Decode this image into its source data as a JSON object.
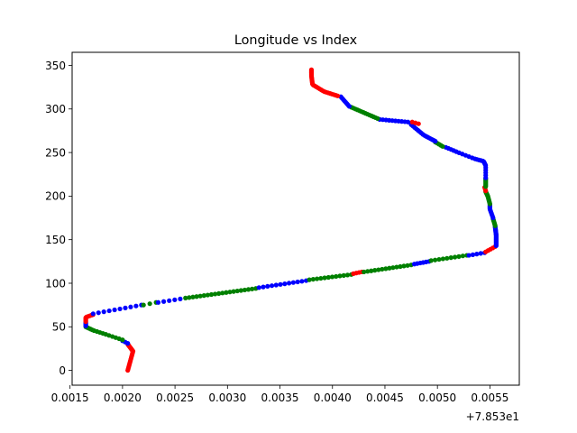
{
  "chart_data": {
    "type": "scatter",
    "title": "Longitude vs Index",
    "xlabel": "",
    "ylabel": "",
    "x_offset_label": "+7.853e1",
    "xlim": [
      0.00152,
      0.00578
    ],
    "ylim": [
      -17,
      365
    ],
    "xticks": [
      0.0015,
      0.002,
      0.0025,
      0.003,
      0.0035,
      0.004,
      0.0045,
      0.005,
      0.0055
    ],
    "xtick_labels": [
      "0.0015",
      "0.0020",
      "0.0025",
      "0.0030",
      "0.0035",
      "0.0040",
      "0.0045",
      "0.0050",
      "0.0055"
    ],
    "yticks": [
      0,
      50,
      100,
      150,
      200,
      250,
      300,
      350
    ],
    "ytick_labels": [
      "0",
      "50",
      "100",
      "150",
      "200",
      "250",
      "300",
      "350"
    ],
    "grid": false,
    "colors": {
      "red": "#ff0000",
      "blue": "#0000ff",
      "green": "#008000"
    },
    "segments": [
      {
        "color": "red",
        "count": 25,
        "x": [
          0.00205,
          0.0021,
          0.00205
        ],
        "y": [
          0,
          22,
          30
        ]
      },
      {
        "color": "blue",
        "count": 3,
        "x": [
          0.00205,
          0.002
        ],
        "y": [
          31,
          34
        ]
      },
      {
        "color": "green",
        "count": 15,
        "x": [
          0.002,
          0.00185,
          0.00172,
          0.00165
        ],
        "y": [
          35,
          41,
          46,
          50
        ]
      },
      {
        "color": "blue",
        "count": 5,
        "x": [
          0.00165,
          0.00165
        ],
        "y": [
          51,
          55
        ]
      },
      {
        "color": "red",
        "count": 10,
        "x": [
          0.00165,
          0.00165,
          0.00172
        ],
        "y": [
          56,
          61,
          64
        ]
      },
      {
        "color": "blue",
        "count": 10,
        "x": [
          0.00172,
          0.00218
        ],
        "y": [
          65,
          75
        ]
      },
      {
        "color": "green",
        "count": 3,
        "x": [
          0.0022,
          0.00232
        ],
        "y": [
          75,
          78
        ]
      },
      {
        "color": "blue",
        "count": 5,
        "x": [
          0.00234,
          0.00255
        ],
        "y": [
          78,
          82
        ]
      },
      {
        "color": "green",
        "count": 20,
        "x": [
          0.0026,
          0.00327
        ],
        "y": [
          83,
          94
        ]
      },
      {
        "color": "blue",
        "count": 12,
        "x": [
          0.0033,
          0.00375
        ],
        "y": [
          95,
          103
        ]
      },
      {
        "color": "green",
        "count": 12,
        "x": [
          0.00378,
          0.00418
        ],
        "y": [
          104,
          110
        ]
      },
      {
        "color": "red",
        "count": 4,
        "x": [
          0.0042,
          0.00428
        ],
        "y": [
          111,
          113
        ]
      },
      {
        "color": "green",
        "count": 14,
        "x": [
          0.0043,
          0.00475
        ],
        "y": [
          113,
          121
        ]
      },
      {
        "color": "blue",
        "count": 6,
        "x": [
          0.00478,
          0.00492
        ],
        "y": [
          122,
          125
        ]
      },
      {
        "color": "green",
        "count": 10,
        "x": [
          0.00494,
          0.00528
        ],
        "y": [
          126,
          132
        ]
      },
      {
        "color": "blue",
        "count": 5,
        "x": [
          0.0053,
          0.00545
        ],
        "y": [
          132,
          135
        ]
      },
      {
        "color": "red",
        "count": 5,
        "x": [
          0.00546,
          0.00555
        ],
        "y": [
          136,
          142
        ]
      },
      {
        "color": "blue",
        "count": 25,
        "x": [
          0.00556,
          0.00556,
          0.00555
        ],
        "y": [
          143,
          155,
          165
        ]
      },
      {
        "color": "green",
        "count": 8,
        "x": [
          0.00555,
          0.00553
        ],
        "y": [
          166,
          174
        ]
      },
      {
        "color": "blue",
        "count": 12,
        "x": [
          0.00553,
          0.0055,
          0.0055
        ],
        "y": [
          175,
          185,
          190
        ]
      },
      {
        "color": "green",
        "count": 15,
        "x": [
          0.0055,
          0.00548,
          0.00546
        ],
        "y": [
          191,
          200,
          205
        ]
      },
      {
        "color": "red",
        "count": 3,
        "x": [
          0.00546,
          0.00545
        ],
        "y": [
          206,
          210
        ]
      },
      {
        "color": "green",
        "count": 8,
        "x": [
          0.00546,
          0.00546
        ],
        "y": [
          211,
          220
        ]
      },
      {
        "color": "blue",
        "count": 25,
        "x": [
          0.00546,
          0.00546,
          0.00544,
          0.00535,
          0.0052,
          0.00508
        ],
        "y": [
          221,
          235,
          240,
          243,
          250,
          256
        ]
      },
      {
        "color": "green",
        "count": 5,
        "x": [
          0.00505,
          0.00498
        ],
        "y": [
          257,
          262
        ]
      },
      {
        "color": "blue",
        "count": 16,
        "x": [
          0.00498,
          0.00487,
          0.00475
        ],
        "y": [
          263,
          270,
          282
        ]
      },
      {
        "color": "red",
        "count": 3,
        "x": [
          0.00482,
          0.00476
        ],
        "y": [
          283,
          285
        ]
      },
      {
        "color": "blue",
        "count": 10,
        "x": [
          0.00472,
          0.00445
        ],
        "y": [
          285,
          288
        ]
      },
      {
        "color": "green",
        "count": 14,
        "x": [
          0.00443,
          0.00418
        ],
        "y": [
          289,
          302
        ]
      },
      {
        "color": "blue",
        "count": 8,
        "x": [
          0.00416,
          0.00408
        ],
        "y": [
          303,
          314
        ]
      },
      {
        "color": "red",
        "count": 30,
        "x": [
          0.00405,
          0.00392,
          0.00381,
          0.0038,
          0.0038
        ],
        "y": [
          315,
          320,
          328,
          338,
          345
        ]
      }
    ]
  }
}
